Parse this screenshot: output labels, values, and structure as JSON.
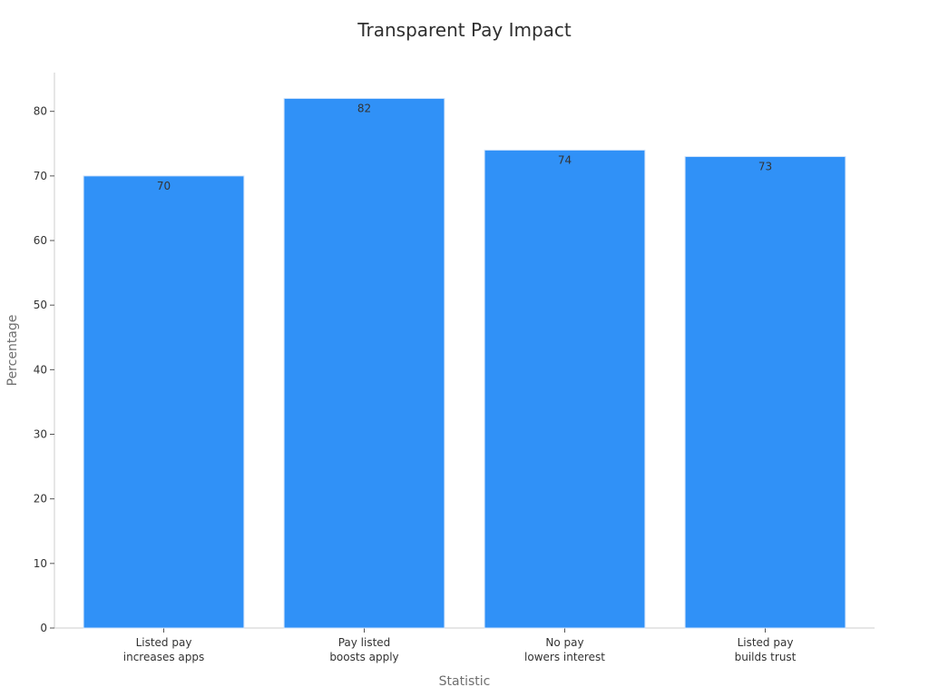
{
  "chart_data": {
    "type": "bar",
    "title": "Transparent Pay Impact",
    "xlabel": "Statistic",
    "ylabel": "Percentage",
    "categories": [
      [
        "Listed pay",
        "increases apps"
      ],
      [
        "Pay listed",
        "boosts apply"
      ],
      [
        "No pay",
        "lowers interest"
      ],
      [
        "Listed pay",
        "builds trust"
      ]
    ],
    "values": [
      70,
      82,
      74,
      73
    ],
    "ylim": [
      0,
      86
    ],
    "yticks": [
      0,
      10,
      20,
      30,
      40,
      50,
      60,
      70,
      80
    ],
    "grid": false,
    "legend": "none",
    "colors": {
      "bar": "#3091f7",
      "axis": "#cccccc",
      "text": "#333333",
      "title": "#2f2f2f",
      "axis_title": "#6f6f6f"
    }
  }
}
